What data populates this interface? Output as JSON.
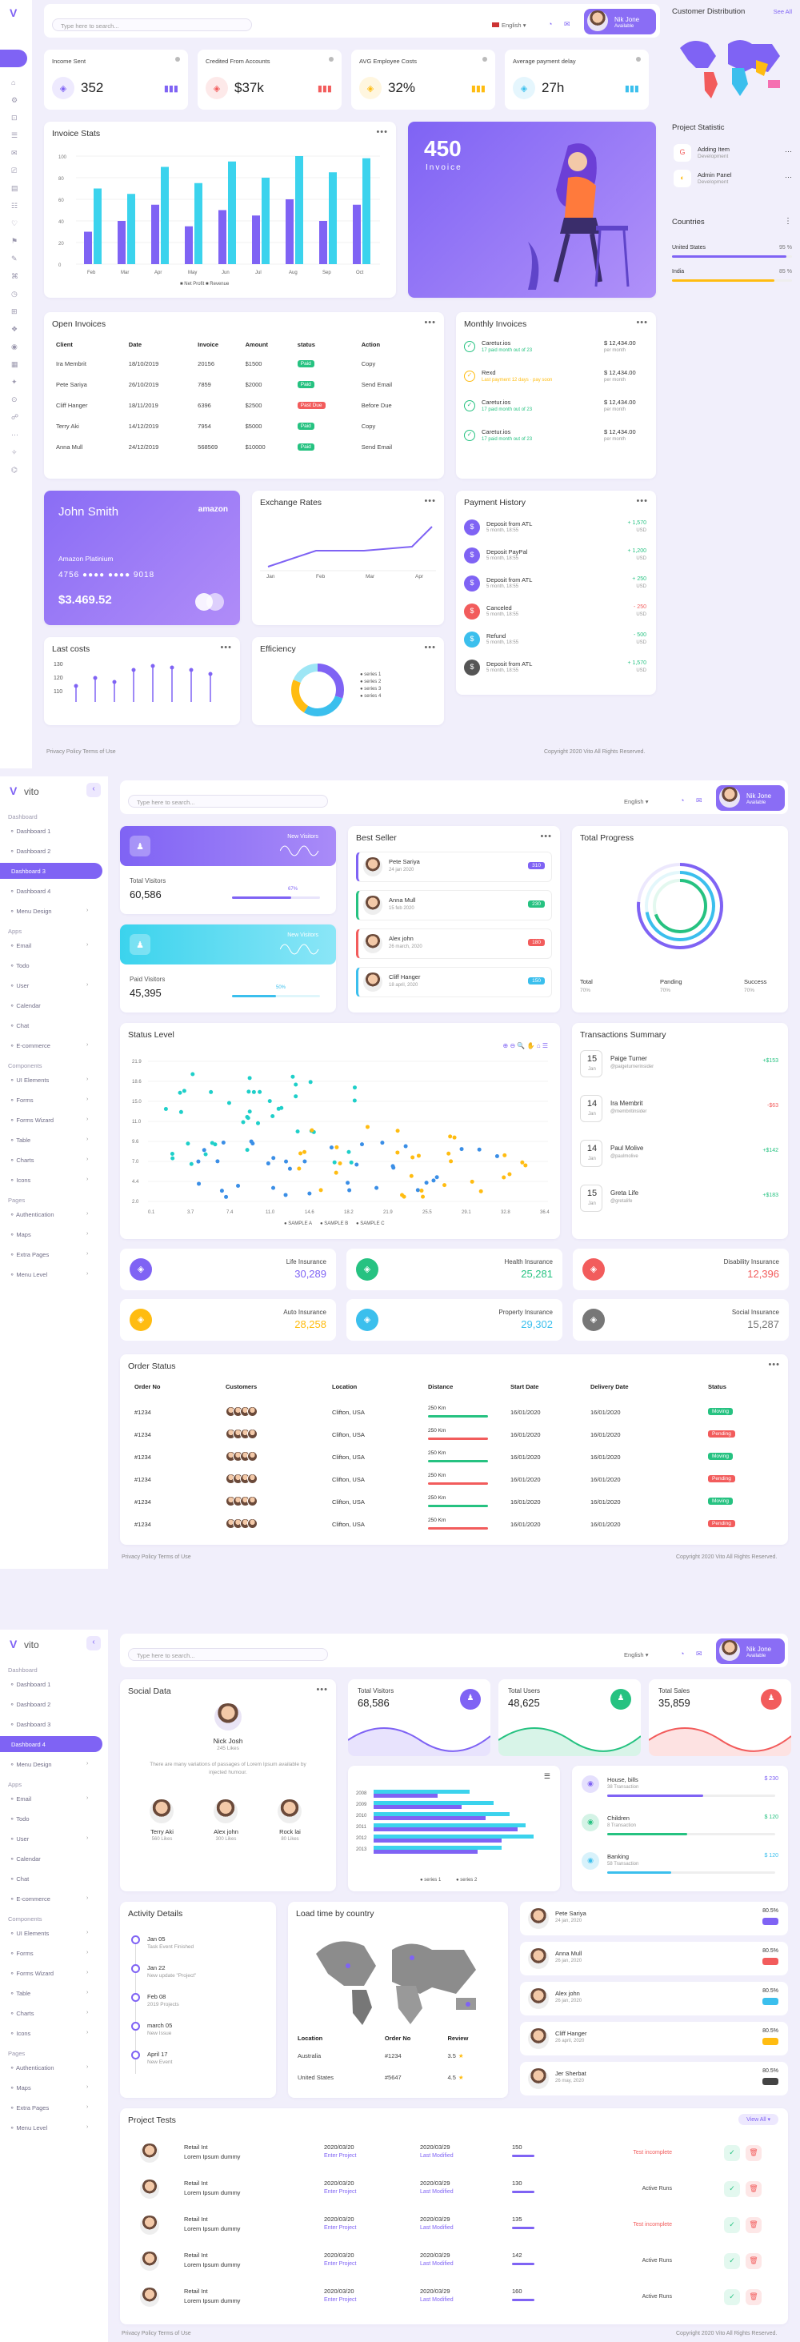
{
  "s1": {
    "search_placeholder": "Type here to search...",
    "lang": "English",
    "user": {
      "name": "Nik Jone",
      "role": "Available"
    },
    "stats": [
      {
        "label": "Income Sent",
        "value": "352",
        "color": "#7f63f4"
      },
      {
        "label": "Credited From Accounts",
        "value": "$37k",
        "color": "#f25c5c"
      },
      {
        "label": "AVG Employee Costs",
        "value": "32%",
        "color": "#ffbc11"
      },
      {
        "label": "Average payment delay",
        "value": "27h",
        "color": "#3bbfed"
      }
    ],
    "invoice_stats": {
      "title": "Invoice Stats"
    },
    "promo": {
      "value": "450",
      "label": "Invoice"
    },
    "customer_distribution": {
      "title": "Customer Distribution",
      "link": "See All"
    },
    "project_statistic": {
      "title": "Project Statistic",
      "items": [
        {
          "name": "Adding Item",
          "sub": "Development"
        },
        {
          "name": "Admin Panel",
          "sub": "Development"
        }
      ]
    },
    "countries": {
      "title": "Countries",
      "items": [
        {
          "name": "United States",
          "pct": "95 %",
          "value": 0.95,
          "color": "#7f63f4"
        },
        {
          "name": "India",
          "pct": "85 %",
          "value": 0.85,
          "color": "#ffbc11"
        }
      ]
    },
    "open_invoices": {
      "title": "Open Invoices",
      "columns": [
        "Client",
        "Date",
        "Invoice",
        "Amount",
        "status",
        "Action"
      ],
      "rows": [
        [
          "Ira Membrit",
          "18/10/2019",
          "20156",
          "$1500",
          "Paid",
          "Copy"
        ],
        [
          "Pete Sariya",
          "26/10/2019",
          "7859",
          "$2000",
          "Paid",
          "Send Email"
        ],
        [
          "Cliff Hanger",
          "18/11/2019",
          "6396",
          "$2500",
          "Past Due",
          "Before Due"
        ],
        [
          "Terry Aki",
          "14/12/2019",
          "7954",
          "$5000",
          "Paid",
          "Copy"
        ],
        [
          "Anna Mull",
          "24/12/2019",
          "568569",
          "$10000",
          "Paid",
          "Send Email"
        ]
      ]
    },
    "monthly_invoices": {
      "title": "Monthly Invoices",
      "items": [
        {
          "name": "Caretur.ios",
          "sub": "17 paid month out of 23",
          "amount": "$ 12,434.00",
          "per": "per month",
          "color": "#26c281"
        },
        {
          "name": "Rexd",
          "sub": "Last payment 12 days · pay soon",
          "amount": "$ 12,434.00",
          "per": "per month",
          "color": "#ffbc11"
        },
        {
          "name": "Caretur.ios",
          "sub": "17 paid month out of 23",
          "amount": "$ 12,434.00",
          "per": "per month",
          "color": "#26c281"
        },
        {
          "name": "Caretur.ios",
          "sub": "17 paid month out of 23",
          "amount": "$ 12,434.00",
          "per": "per month",
          "color": "#26c281"
        }
      ]
    },
    "credit_card": {
      "name": "John Smith",
      "brand": "amazon",
      "type": "Amazon Platinium",
      "num_a": "4756",
      "num_b": "9018",
      "balance": "$3.469.52"
    },
    "exchange_rates": {
      "title": "Exchange Rates",
      "x": [
        "Jan",
        "Feb",
        "Mar",
        "Apr"
      ]
    },
    "payment_history": {
      "title": "Payment History",
      "items": [
        {
          "name": "Deposit from ATL",
          "date": "5 month, 18:55",
          "amount": "+ 1,570",
          "cur": "USD",
          "color": "#7f63f4"
        },
        {
          "name": "Deposit PayPal",
          "date": "5 month, 18:55",
          "amount": "+ 1,200",
          "cur": "USD",
          "color": "#7f63f4"
        },
        {
          "name": "Deposit from ATL",
          "date": "5 month, 18:55",
          "amount": "+ 250",
          "cur": "USD",
          "color": "#7f63f4"
        },
        {
          "name": "Canceled",
          "date": "5 month, 18:55",
          "amount": "- 250",
          "cur": "USD",
          "color": "#f25c5c"
        },
        {
          "name": "Refund",
          "date": "5 month, 18:55",
          "amount": "- 500",
          "cur": "USD",
          "color": "#3bbfed"
        },
        {
          "name": "Deposit from ATL",
          "date": "5 month, 18:55",
          "amount": "+ 1,570",
          "cur": "USD",
          "color": "#555"
        }
      ]
    },
    "last_costs": {
      "title": "Last costs"
    },
    "efficiency": {
      "title": "Efficiency",
      "legend": [
        "series 1",
        "series 2",
        "series 3",
        "series 4"
      ]
    },
    "footer": {
      "left": "Privacy Policy   Terms of Use",
      "right": "Copyright 2020 Vito All Rights Reserved."
    }
  },
  "sidebar": {
    "brand": "vito",
    "sections": {
      "dashboard": "Dashboard",
      "apps": "Apps",
      "components": "Components",
      "pages": "Pages"
    },
    "dash_items": [
      "Dashboard 1",
      "Dashboard 2",
      "Dashboard 3",
      "Dashboard 4",
      "Menu Design"
    ],
    "app_items": [
      "Email",
      "Todo",
      "User",
      "Calendar",
      "Chat",
      "E-commerce"
    ],
    "comp_items": [
      "UI Elements",
      "Forms",
      "Forms Wizard",
      "Table",
      "Charts",
      "Icons"
    ],
    "page_items": [
      "Authentication",
      "Maps",
      "Extra Pages",
      "Menu Level"
    ]
  },
  "s2": {
    "new_visitors": "New Visitors",
    "total_visitors": {
      "label": "Total Visitors",
      "value": "60,586",
      "pct": "67%"
    },
    "paid_visitors": {
      "label": "Paid Visitors",
      "value": "45,395",
      "pct": "50%"
    },
    "best_seller": {
      "title": "Best Seller",
      "items": [
        {
          "name": "Pete Sariya",
          "date": "24 jan 2020",
          "badge": "310",
          "color": "#7f63f4"
        },
        {
          "name": "Anna Mull",
          "date": "15 feb 2020",
          "badge": "230",
          "color": "#26c281"
        },
        {
          "name": "Alex john",
          "date": "26 march, 2020",
          "badge": "180",
          "color": "#f25c5c"
        },
        {
          "name": "Cliff Hanger",
          "date": "18 april, 2020",
          "badge": "150",
          "color": "#3bbfed"
        }
      ]
    },
    "total_progress": {
      "title": "Total Progress",
      "stats": [
        {
          "label": "Total",
          "pct": "70%"
        },
        {
          "label": "Panding",
          "pct": "70%"
        },
        {
          "label": "Success",
          "pct": "70%"
        }
      ]
    },
    "status_level": {
      "title": "Status Level",
      "legend": [
        "SAMPLE A",
        "SAMPLE B",
        "SAMPLE C"
      ]
    },
    "transactions": {
      "title": "Transactions Summary",
      "items": [
        {
          "day": "15",
          "mon": "Jan",
          "name": "Paige Turner",
          "sub": "@paigeturnerinsider",
          "amount": "+$153",
          "color": "#26c281"
        },
        {
          "day": "14",
          "mon": "Jan",
          "name": "Ira Membrit",
          "sub": "@membritinsider",
          "amount": "-$63",
          "color": "#f25c5c"
        },
        {
          "day": "14",
          "mon": "Jan",
          "name": "Paul Molive",
          "sub": "@paulmolive",
          "amount": "+$142",
          "color": "#26c281"
        },
        {
          "day": "15",
          "mon": "Jan",
          "name": "Greta Life",
          "sub": "@gretalife",
          "amount": "+$183",
          "color": "#26c281"
        }
      ]
    },
    "insurance": [
      {
        "label": "Life Insurance",
        "value": "30,289",
        "color": "#7f63f4"
      },
      {
        "label": "Health Insurance",
        "value": "25,281",
        "color": "#26c281"
      },
      {
        "label": "Disability Insurance",
        "value": "12,396",
        "color": "#f25c5c"
      },
      {
        "label": "Auto Insurance",
        "value": "28,258",
        "color": "#ffbc11"
      },
      {
        "label": "Property Insurance",
        "value": "29,302",
        "color": "#3bbfed"
      },
      {
        "label": "Social Insurance",
        "value": "15,287",
        "color": "#777777"
      }
    ],
    "order_status": {
      "title": "Order Status",
      "columns": [
        "Order No",
        "Customers",
        "Location",
        "Distance",
        "Start Date",
        "Delivery Date",
        "Status"
      ],
      "rows": [
        {
          "no": "#1234",
          "loc": "Clifton, USA",
          "dist": "250 Km",
          "start": "16/01/2020",
          "del": "16/01/2020",
          "status": "Moving",
          "sc": "#26c281"
        },
        {
          "no": "#1234",
          "loc": "Clifton, USA",
          "dist": "250 Km",
          "start": "16/01/2020",
          "del": "16/01/2020",
          "status": "Pending",
          "sc": "#f25c5c"
        },
        {
          "no": "#1234",
          "loc": "Clifton, USA",
          "dist": "250 Km",
          "start": "16/01/2020",
          "del": "16/01/2020",
          "status": "Moving",
          "sc": "#26c281"
        },
        {
          "no": "#1234",
          "loc": "Clifton, USA",
          "dist": "250 Km",
          "start": "16/01/2020",
          "del": "16/01/2020",
          "status": "Pending",
          "sc": "#f25c5c"
        },
        {
          "no": "#1234",
          "loc": "Clifton, USA",
          "dist": "250 Km",
          "start": "16/01/2020",
          "del": "16/01/2020",
          "status": "Moving",
          "sc": "#26c281"
        },
        {
          "no": "#1234",
          "loc": "Clifton, USA",
          "dist": "250 Km",
          "start": "16/01/2020",
          "del": "16/01/2020",
          "status": "Pending",
          "sc": "#f25c5c"
        }
      ]
    },
    "footer": {
      "left": "Privacy Policy   Terms of Use",
      "right": "Copyright 2020 Vito All Rights Reserved."
    }
  },
  "s3": {
    "social": {
      "title": "Social Data",
      "name": "Nick Josh",
      "likes": "245 Likes",
      "text": "There are many variations of passages of Lorem Ipsum available by injected humour.",
      "people": [
        {
          "name": "Terry Aki",
          "likes": "560 Likes"
        },
        {
          "name": "Alex john",
          "likes": "300 Likes"
        },
        {
          "name": "Rock lai",
          "likes": "80 Likes"
        }
      ]
    },
    "kpis": [
      {
        "label": "Total Visitors",
        "value": "68,586",
        "color": "#7f63f4"
      },
      {
        "label": "Total Users",
        "value": "48,625",
        "color": "#26c281"
      },
      {
        "label": "Total Sales",
        "value": "35,859",
        "color": "#f25c5c"
      }
    ],
    "hbar": {
      "years": [
        "2008",
        "2009",
        "2010",
        "2011",
        "2012",
        "2013"
      ],
      "legend": [
        "series 1",
        "series 2"
      ]
    },
    "spend": [
      {
        "label": "House, bills",
        "sub": "38 Transaction",
        "amount": "$ 230",
        "color": "#7f63f4"
      },
      {
        "label": "Children",
        "sub": "8 Transaction",
        "amount": "$ 120",
        "color": "#26c281"
      },
      {
        "label": "Banking",
        "sub": "58 Transaction",
        "amount": "$ 120",
        "color": "#3bbfed"
      }
    ],
    "activity": {
      "title": "Activity Details",
      "items": [
        {
          "date": "Jan 05",
          "text": "Task Event Finished"
        },
        {
          "date": "Jan 22",
          "text": "New update \"Project\""
        },
        {
          "date": "Feb 08",
          "text": "2019 Projects"
        },
        {
          "date": "march 05",
          "text": "New Issue"
        },
        {
          "date": "April 17",
          "text": "New Event"
        }
      ]
    },
    "load": {
      "title": "Load time by country",
      "columns": [
        "Location",
        "Order No",
        "Review"
      ],
      "rows": [
        [
          "Australia",
          "#1234",
          "3.5"
        ],
        [
          "United States",
          "#5647",
          "4.5"
        ]
      ]
    },
    "people": [
      {
        "name": "Pete Sariya",
        "date": "24 jan, 2020",
        "pct": "80.5%",
        "color": "#7f63f4"
      },
      {
        "name": "Anna Mull",
        "date": "26 jan, 2020",
        "pct": "80.5%",
        "color": "#f25c5c"
      },
      {
        "name": "Alex john",
        "date": "26 jan, 2020",
        "pct": "80.5%",
        "color": "#3bbfed"
      },
      {
        "name": "Cliff Hanger",
        "date": "26 april, 2020",
        "pct": "80.5%",
        "color": "#ffbc11"
      },
      {
        "name": "Jer Sherbat",
        "date": "26 may, 2020",
        "pct": "80.5%",
        "color": "#444444"
      }
    ],
    "projects": {
      "title": "Project Tests",
      "view": "View All",
      "rows": [
        {
          "name": "Retail Int",
          "desc": "Lorem Ipsum dummy",
          "d1": "2020/03/20",
          "l1": "Enter Project",
          "d2": "2020/03/29",
          "l2": "Last Modified",
          "n": "150",
          "s": "Test incomplete",
          "sc": "#f25c5c"
        },
        {
          "name": "Retail Int",
          "desc": "Lorem Ipsum dummy",
          "d1": "2020/03/20",
          "l1": "Enter Project",
          "d2": "2020/03/29",
          "l2": "Last Modified",
          "n": "130",
          "s": "Active Runs",
          "sc": "#444"
        },
        {
          "name": "Retail Int",
          "desc": "Lorem Ipsum dummy",
          "d1": "2020/03/20",
          "l1": "Enter Project",
          "d2": "2020/03/29",
          "l2": "Last Modified",
          "n": "135",
          "s": "Test incomplete",
          "sc": "#f25c5c"
        },
        {
          "name": "Retail Int",
          "desc": "Lorem Ipsum dummy",
          "d1": "2020/03/20",
          "l1": "Enter Project",
          "d2": "2020/03/29",
          "l2": "Last Modified",
          "n": "142",
          "s": "Active Runs",
          "sc": "#444"
        },
        {
          "name": "Retail Int",
          "desc": "Lorem Ipsum dummy",
          "d1": "2020/03/20",
          "l1": "Enter Project",
          "d2": "2020/03/29",
          "l2": "Last Modified",
          "n": "160",
          "s": "Active Runs",
          "sc": "#444"
        }
      ]
    },
    "footer": {
      "left": "Privacy Policy   Terms of Use",
      "right": "Copyright 2020 Vito All Rights Reserved."
    }
  }
}
